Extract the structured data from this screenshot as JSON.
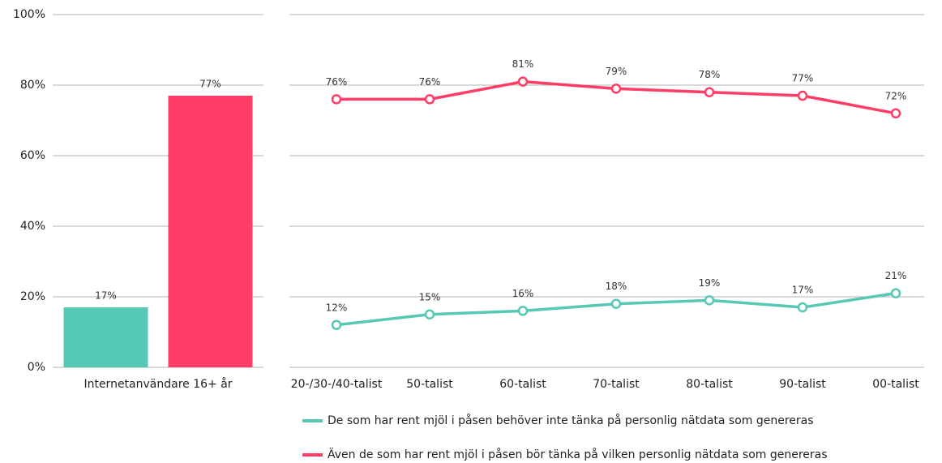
{
  "chart_data": [
    {
      "type": "bar",
      "categories": [
        "Internetanvändare 16+ år"
      ],
      "series": [
        {
          "color": "#56c9b4",
          "values": [
            17
          ],
          "value_labels": [
            "17%"
          ]
        },
        {
          "color": "#ff3d66",
          "values": [
            77
          ],
          "value_labels": [
            "77%"
          ]
        }
      ],
      "ylim": [
        0,
        100
      ],
      "yticks": [
        {
          "value": 0,
          "label": "0%"
        },
        {
          "value": 20,
          "label": "20%"
        },
        {
          "value": 40,
          "label": "40%"
        },
        {
          "value": 60,
          "label": "60%"
        },
        {
          "value": 80,
          "label": "80%"
        },
        {
          "value": 100,
          "label": "100%"
        }
      ],
      "grid": true
    },
    {
      "type": "line",
      "categories": [
        "20-/30-/40-talist",
        "50-talist",
        "60-talist",
        "70-talist",
        "80-talist",
        "90-talist",
        "00-talist"
      ],
      "series": [
        {
          "name": "De som har rent mjöl i påsen behöver inte tänka på personlig nätdata som genereras",
          "color": "#56c9b4",
          "values": [
            12,
            15,
            16,
            18,
            19,
            17,
            21
          ],
          "value_labels": [
            "12%",
            "15%",
            "16%",
            "18%",
            "19%",
            "17%",
            "21%"
          ]
        },
        {
          "name": "Även de som har rent mjöl i påsen bör tänka på vilken personlig nätdata som genereras",
          "color": "#ff3d66",
          "values": [
            76,
            76,
            81,
            79,
            78,
            77,
            72
          ],
          "value_labels": [
            "76%",
            "76%",
            "81%",
            "79%",
            "78%",
            "77%",
            "72%"
          ]
        }
      ],
      "ylim": [
        0,
        100
      ],
      "yticks": [
        0,
        20,
        40,
        60,
        80,
        100
      ],
      "grid": true,
      "legend": "bottom"
    }
  ]
}
